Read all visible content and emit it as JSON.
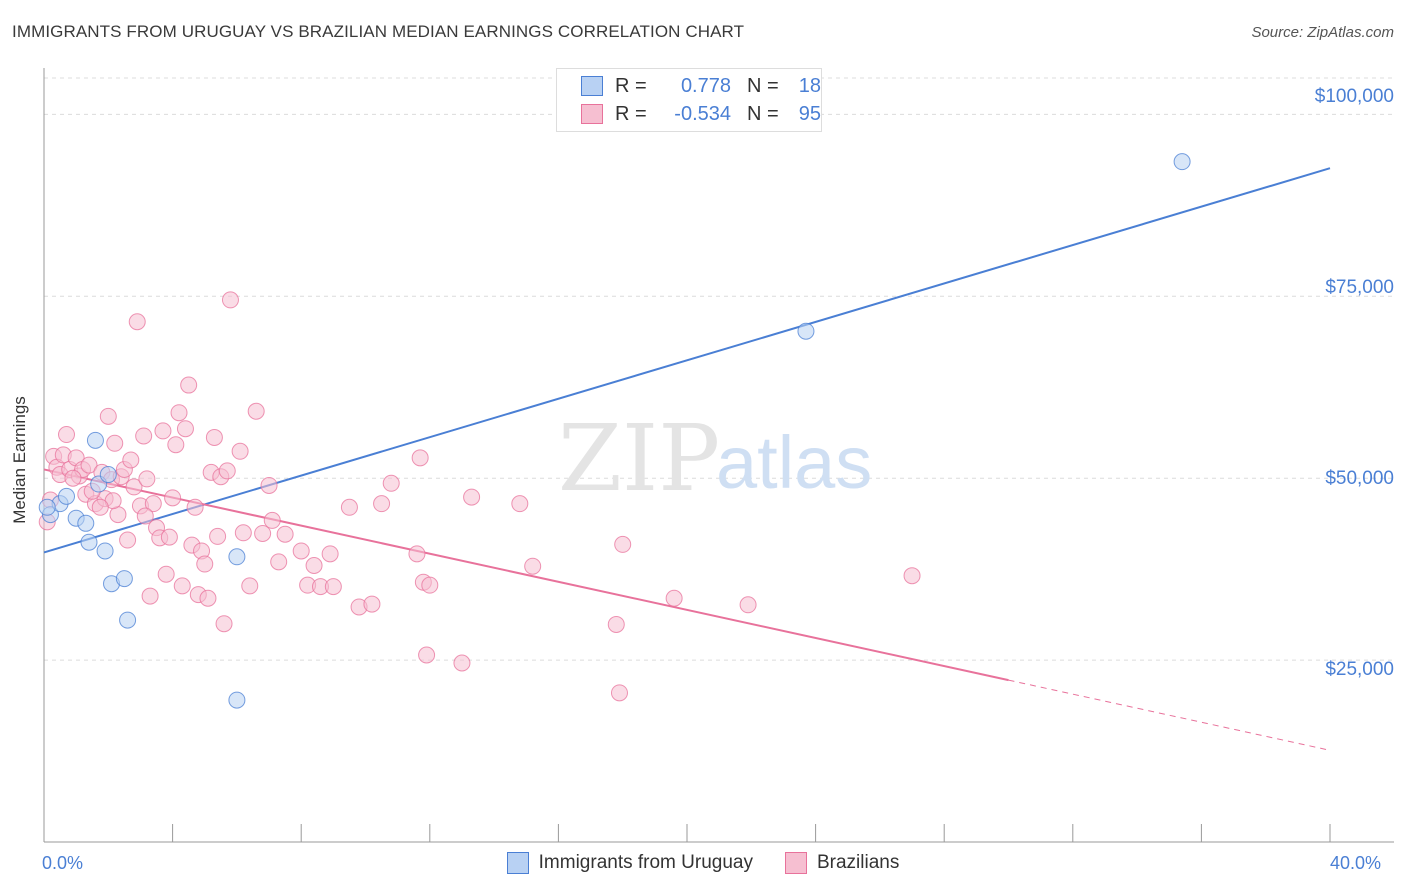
{
  "header": {
    "title": "IMMIGRANTS FROM URUGUAY VS BRAZILIAN MEDIAN EARNINGS CORRELATION CHART",
    "source": "Source: ZipAtlas.com"
  },
  "watermark": {
    "zip": "ZIP",
    "atlas": "atlas"
  },
  "legend": {
    "rows": [
      {
        "r_label": "R =",
        "r_value": "0.778",
        "n_label": "N =",
        "n_value": "18"
      },
      {
        "r_label": "R =",
        "r_value": "-0.534",
        "n_label": "N =",
        "n_value": "95"
      }
    ]
  },
  "axes": {
    "x_min_label": "0.0%",
    "x_max_label": "40.0%",
    "y_ticks": [
      "$100,000",
      "$75,000",
      "$50,000",
      "$25,000"
    ]
  },
  "colors": {
    "blue": "#4a7fd4",
    "blue_fill": "#b8d1f3",
    "pink": "#e8729b",
    "pink_fill": "#f6bfd1",
    "grid": "#dcdcdc"
  },
  "chart_data": {
    "type": "scatter",
    "title": "IMMIGRANTS FROM URUGUAY VS BRAZILIAN MEDIAN EARNINGS CORRELATION CHART",
    "xlabel": "",
    "ylabel": "Median Earnings",
    "xlim": [
      0,
      40
    ],
    "ylim": [
      0,
      105000
    ],
    "y_ticks": [
      25000,
      50000,
      75000,
      100000
    ],
    "grid": true,
    "legend_position": "top-center",
    "series": [
      {
        "name": "Immigrants from Uruguay",
        "color": "#4a7fd4",
        "points": [
          [
            0.2,
            45000
          ],
          [
            0.5,
            46500
          ],
          [
            0.7,
            47500
          ],
          [
            1.0,
            44500
          ],
          [
            1.3,
            43800
          ],
          [
            1.4,
            41200
          ],
          [
            1.6,
            55200
          ],
          [
            1.7,
            49200
          ],
          [
            1.9,
            40000
          ],
          [
            2.0,
            50500
          ],
          [
            2.1,
            35500
          ],
          [
            2.5,
            36200
          ],
          [
            2.6,
            30500
          ],
          [
            6.0,
            39200
          ],
          [
            6.0,
            19500
          ],
          [
            23.7,
            70200
          ],
          [
            35.4,
            93500
          ],
          [
            0.1,
            46000
          ]
        ],
        "trend": {
          "x": [
            0,
            40
          ],
          "y": [
            39800,
            92600
          ],
          "dashed_from": null
        }
      },
      {
        "name": "Brazilians",
        "color": "#e8729b",
        "points": [
          [
            0.1,
            44000
          ],
          [
            0.3,
            53000
          ],
          [
            0.4,
            51500
          ],
          [
            0.5,
            50500
          ],
          [
            0.6,
            53200
          ],
          [
            0.7,
            56000
          ],
          [
            0.8,
            51200
          ],
          [
            1.0,
            52800
          ],
          [
            1.1,
            50300
          ],
          [
            1.2,
            51200
          ],
          [
            1.3,
            47800
          ],
          [
            1.4,
            51800
          ],
          [
            1.6,
            46500
          ],
          [
            1.8,
            50800
          ],
          [
            1.9,
            47200
          ],
          [
            2.0,
            58500
          ],
          [
            2.1,
            49800
          ],
          [
            2.2,
            54800
          ],
          [
            2.3,
            45000
          ],
          [
            2.4,
            50200
          ],
          [
            2.5,
            51200
          ],
          [
            2.6,
            41500
          ],
          [
            2.7,
            52500
          ],
          [
            2.8,
            48800
          ],
          [
            2.9,
            71500
          ],
          [
            3.0,
            46200
          ],
          [
            3.1,
            55800
          ],
          [
            3.2,
            49900
          ],
          [
            3.3,
            33800
          ],
          [
            3.4,
            46500
          ],
          [
            3.5,
            43200
          ],
          [
            3.6,
            41800
          ],
          [
            3.7,
            56500
          ],
          [
            3.8,
            36800
          ],
          [
            3.9,
            41900
          ],
          [
            4.0,
            47300
          ],
          [
            4.1,
            54600
          ],
          [
            4.2,
            59000
          ],
          [
            4.3,
            35200
          ],
          [
            4.4,
            56800
          ],
          [
            4.5,
            62800
          ],
          [
            4.6,
            40800
          ],
          [
            4.7,
            46000
          ],
          [
            4.8,
            34000
          ],
          [
            4.9,
            40000
          ],
          [
            5.0,
            38200
          ],
          [
            5.1,
            33500
          ],
          [
            5.2,
            50800
          ],
          [
            5.3,
            55600
          ],
          [
            5.4,
            42000
          ],
          [
            5.5,
            50200
          ],
          [
            5.6,
            30000
          ],
          [
            5.7,
            51000
          ],
          [
            5.8,
            74500
          ],
          [
            6.1,
            53700
          ],
          [
            6.2,
            42500
          ],
          [
            6.4,
            35200
          ],
          [
            6.6,
            59200
          ],
          [
            6.8,
            42400
          ],
          [
            7.0,
            49000
          ],
          [
            7.1,
            44200
          ],
          [
            7.3,
            38500
          ],
          [
            7.5,
            42300
          ],
          [
            8.0,
            40000
          ],
          [
            8.2,
            35300
          ],
          [
            8.4,
            38000
          ],
          [
            8.6,
            35100
          ],
          [
            8.9,
            39600
          ],
          [
            9.0,
            35100
          ],
          [
            9.5,
            46000
          ],
          [
            9.8,
            32300
          ],
          [
            10.2,
            32700
          ],
          [
            10.5,
            46500
          ],
          [
            10.8,
            49300
          ],
          [
            11.6,
            39600
          ],
          [
            11.7,
            52800
          ],
          [
            11.8,
            35700
          ],
          [
            11.9,
            25700
          ],
          [
            12.0,
            35300
          ],
          [
            13.0,
            24600
          ],
          [
            13.3,
            47400
          ],
          [
            14.8,
            46500
          ],
          [
            15.2,
            37900
          ],
          [
            17.8,
            29900
          ],
          [
            17.9,
            20500
          ],
          [
            18.0,
            40900
          ],
          [
            19.6,
            33500
          ],
          [
            21.9,
            32600
          ],
          [
            27.0,
            36600
          ],
          [
            0.2,
            47000
          ],
          [
            0.9,
            50000
          ],
          [
            1.5,
            48200
          ],
          [
            2.15,
            46900
          ],
          [
            3.15,
            44800
          ],
          [
            1.75,
            46000
          ]
        ],
        "trend": {
          "x": [
            0,
            40
          ],
          "y": [
            51200,
            12600
          ],
          "dashed_from": 30
        }
      }
    ]
  }
}
